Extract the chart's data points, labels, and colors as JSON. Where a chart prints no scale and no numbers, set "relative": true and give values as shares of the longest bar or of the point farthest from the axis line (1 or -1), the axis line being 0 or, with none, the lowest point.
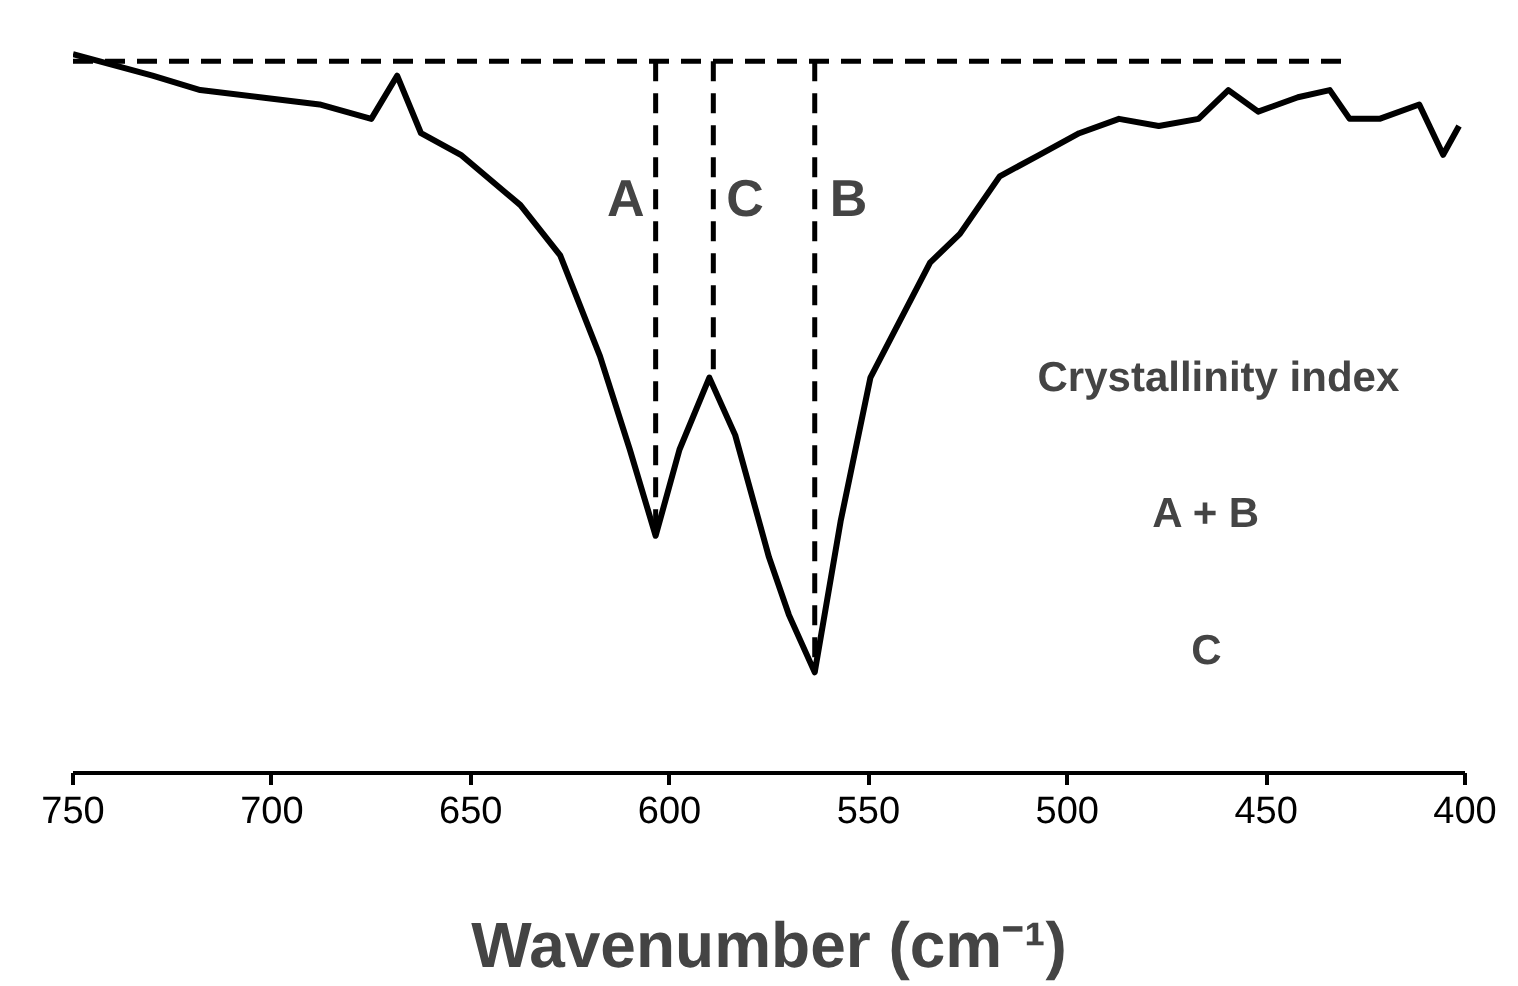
{
  "chart_data": {
    "type": "line",
    "relative": true,
    "xlabel": "Wavenumber (cm⁻¹)",
    "xlim": [
      750,
      400
    ],
    "xticks": [
      750,
      700,
      650,
      600,
      550,
      500,
      450,
      400
    ],
    "grid": false,
    "series": [
      {
        "color": "#000000",
        "line_style": "solid",
        "x": [
          750,
          730,
          718,
          703,
          688,
          675,
          668.5,
          662.5,
          652.5,
          637.5,
          627.5,
          617.5,
          610,
          603.5,
          597.5,
          590,
          583.5,
          575,
          570,
          563.5,
          557,
          549.5,
          542,
          534.5,
          527,
          517,
          507,
          497,
          487,
          477,
          467,
          459.5,
          452,
          442,
          434,
          429,
          421.5,
          411.5,
          405.5,
          401.5
        ],
        "values": [
          1.0,
          0.97,
          0.95,
          0.94,
          0.93,
          0.91,
          0.97,
          0.89,
          0.86,
          0.79,
          0.72,
          0.58,
          0.45,
          0.33,
          0.45,
          0.55,
          0.47,
          0.3,
          0.22,
          0.14,
          0.35,
          0.55,
          0.63,
          0.71,
          0.75,
          0.83,
          0.86,
          0.89,
          0.91,
          0.9,
          0.91,
          0.95,
          0.92,
          0.94,
          0.95,
          0.91,
          0.91,
          0.93,
          0.86,
          0.9
        ]
      },
      {
        "color": "#000000",
        "line_style": "dashed",
        "x": [
          750,
          430
        ],
        "values": [
          0.99,
          0.99
        ]
      },
      {
        "color": "#000000",
        "line_style": "dashed",
        "x": [
          603.5,
          603.5
        ],
        "values": [
          0.99,
          0.33
        ]
      },
      {
        "color": "#000000",
        "line_style": "dashed",
        "x": [
          589,
          589
        ],
        "values": [
          0.99,
          0.55
        ]
      },
      {
        "color": "#000000",
        "line_style": "dashed",
        "x": [
          563.5,
          563.5
        ],
        "values": [
          0.99,
          0.14
        ]
      }
    ],
    "annotations": [
      "A",
      "C",
      "B",
      "Crystallinity index",
      "A + B",
      "C"
    ]
  }
}
